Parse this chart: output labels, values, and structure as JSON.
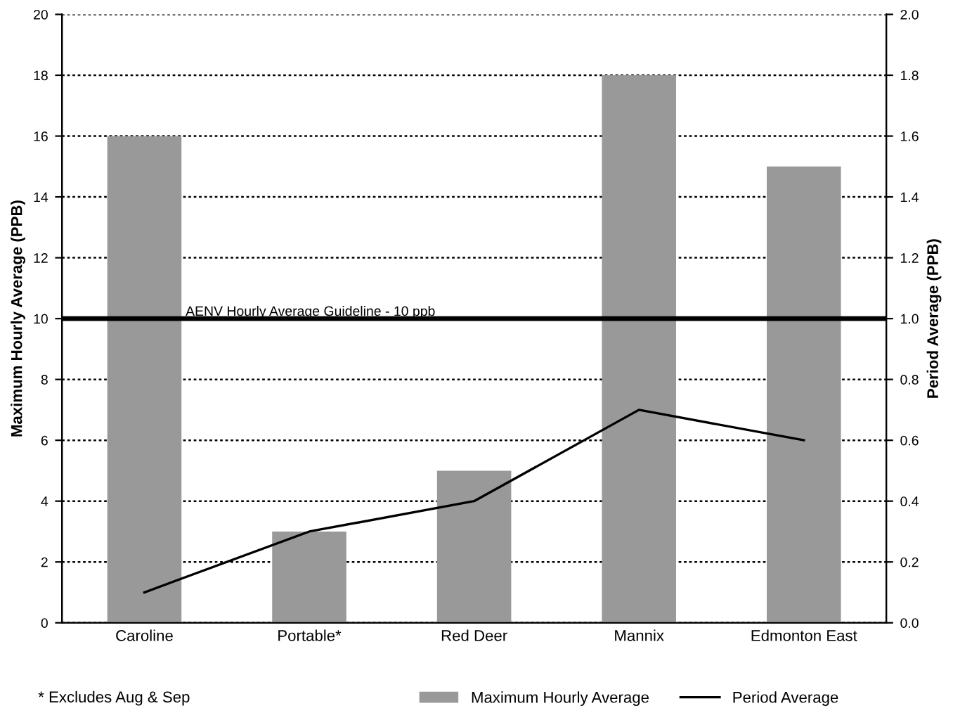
{
  "chart_data": {
    "type": "bar",
    "categories": [
      "Caroline",
      "Portable*",
      "Red Deer",
      "Mannix",
      "Edmonton East"
    ],
    "ylabel": "Maximum Hourly Average (PPB)",
    "y2label": "Period Average (PPB)",
    "series": [
      {
        "name": "Maximum Hourly Average",
        "color": "#999999",
        "values": [
          16,
          3,
          5,
          18,
          15
        ]
      },
      {
        "name": "Period Average",
        "type": "line",
        "axis": "y2",
        "color": "#000000",
        "values": [
          0.1,
          0.3,
          0.4,
          0.7,
          0.6
        ]
      }
    ],
    "ylim": [
      0,
      20
    ],
    "yticks": [
      0,
      2,
      4,
      6,
      8,
      10,
      12,
      14,
      16,
      18,
      20
    ],
    "y2lim": [
      0,
      2.0
    ],
    "y2ticks": [
      {
        "value": 0,
        "label": "0.0"
      },
      {
        "value": 0.2,
        "label": "0.2"
      },
      {
        "value": 0.4,
        "label": "0.4"
      },
      {
        "value": 0.6,
        "label": "0.6"
      },
      {
        "value": 0.8,
        "label": "0.8"
      },
      {
        "value": 1.0,
        "label": "1.0"
      },
      {
        "value": 1.2,
        "label": "1.2"
      },
      {
        "value": 1.4,
        "label": "1.4"
      },
      {
        "value": 1.6,
        "label": "1.6"
      },
      {
        "value": 1.8,
        "label": "1.8"
      },
      {
        "value": 2.0,
        "label": "2.0"
      }
    ],
    "ref_lines": [
      {
        "axis": "y",
        "value": 10,
        "label": "AENV Hourly Average Guideline - 10 ppb",
        "color": "#000000",
        "line_style": "solid"
      }
    ],
    "annotations": [
      "* Excludes Aug & Sep"
    ],
    "grid": "y",
    "legend": "bottom"
  }
}
